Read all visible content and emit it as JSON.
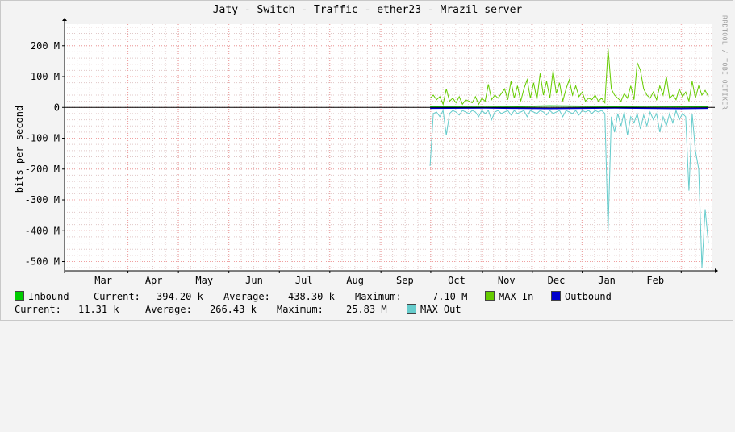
{
  "title": "Jaty - Switch - Traffic - ether23 - Mrazil server",
  "watermark": "RRDTOOL / TOBI OETIKER",
  "colors": {
    "inbound": "#00cc00",
    "max_in": "#66cc00",
    "outbound": "#0000cc",
    "max_out": "#66cccc",
    "grid_minor": "#e0c8c8",
    "grid_major": "#f0a0a0",
    "plot_bg": "#ffffff"
  },
  "legend": {
    "inbound": {
      "label": "Inbound",
      "current_label": "Current:",
      "current": "394.20 k",
      "average_label": "Average:",
      "average": "438.30 k",
      "maximum_label": "Maximum:",
      "maximum": "7.10 M"
    },
    "max_in": {
      "label": "MAX In"
    },
    "outbound": {
      "label": "Outbound",
      "current_label": "Current:",
      "current": "11.31 k",
      "average_label": "Average:",
      "average": "266.43 k",
      "maximum_label": "Maximum:",
      "maximum": "25.83 M"
    },
    "max_out": {
      "label": "MAX Out"
    }
  },
  "chart_data": {
    "type": "area",
    "title": "Jaty - Switch - Traffic - ether23 - Mrazil server",
    "ylabel": "bits per second",
    "ylim": [
      -530,
      270
    ],
    "y_unit": "M",
    "yticks": [
      {
        "value": 200,
        "label": "200 M"
      },
      {
        "value": 100,
        "label": "100 M"
      },
      {
        "value": 0,
        "label": "0"
      },
      {
        "value": -100,
        "label": "-100 M"
      },
      {
        "value": -200,
        "label": "-200 M"
      },
      {
        "value": -300,
        "label": "-300 M"
      },
      {
        "value": -400,
        "label": "-400 M"
      },
      {
        "value": -500,
        "label": "-500 M"
      }
    ],
    "xlim": [
      0,
      100
    ],
    "xticks": [
      {
        "pos": 6.0,
        "label": "Mar"
      },
      {
        "pos": 13.8,
        "label": "Apr"
      },
      {
        "pos": 21.6,
        "label": "May"
      },
      {
        "pos": 29.3,
        "label": "Jun"
      },
      {
        "pos": 37.0,
        "label": "Jul"
      },
      {
        "pos": 44.9,
        "label": "Aug"
      },
      {
        "pos": 52.6,
        "label": "Sep"
      },
      {
        "pos": 60.6,
        "label": "Oct"
      },
      {
        "pos": 68.3,
        "label": "Nov"
      },
      {
        "pos": 76.0,
        "label": "Dec"
      },
      {
        "pos": 83.8,
        "label": "Jan"
      },
      {
        "pos": 91.3,
        "label": "Feb"
      }
    ],
    "major_grid": [
      0,
      9.8,
      17.6,
      25.4,
      33.2,
      41.0,
      48.9,
      56.6,
      64.6,
      72.3,
      80.0,
      87.8,
      95.3
    ],
    "grid": true,
    "legend_position": "bottom",
    "series": [
      {
        "name": "MAX In",
        "x": [
          56.5,
          57.0,
          57.5,
          58.0,
          58.5,
          59.0,
          59.5,
          60.0,
          60.5,
          61.0,
          61.5,
          62.0,
          62.5,
          63.0,
          63.5,
          64.0,
          64.5,
          65.0,
          65.5,
          66.0,
          66.5,
          67.0,
          67.5,
          68.0,
          68.5,
          69.0,
          69.5,
          70.0,
          70.5,
          71.0,
          71.5,
          72.0,
          72.5,
          73.0,
          73.5,
          74.0,
          74.5,
          75.0,
          75.5,
          76.0,
          76.5,
          77.0,
          77.5,
          78.0,
          78.5,
          79.0,
          79.5,
          80.0,
          80.5,
          81.0,
          81.5,
          82.0,
          82.5,
          83.0,
          83.5,
          84.0,
          84.5,
          85.0,
          85.5,
          86.0,
          86.5,
          87.0,
          87.5,
          88.0,
          88.5,
          89.0,
          89.5,
          90.0,
          90.5,
          91.0,
          91.5,
          92.0,
          92.5,
          93.0,
          93.5,
          94.0,
          94.5,
          95.0,
          95.5,
          96.0,
          96.5,
          97.0,
          97.5,
          98.0,
          98.5,
          99.0,
          99.5
        ],
        "y": [
          30,
          40,
          25,
          35,
          10,
          60,
          20,
          30,
          15,
          35,
          10,
          25,
          20,
          15,
          35,
          10,
          30,
          20,
          75,
          25,
          40,
          30,
          45,
          60,
          25,
          85,
          30,
          70,
          20,
          60,
          90,
          30,
          80,
          25,
          110,
          40,
          85,
          30,
          120,
          45,
          80,
          20,
          60,
          90,
          40,
          70,
          35,
          50,
          20,
          30,
          25,
          40,
          20,
          30,
          15,
          190,
          60,
          40,
          30,
          20,
          45,
          30,
          70,
          25,
          145,
          120,
          60,
          40,
          30,
          50,
          25,
          70,
          40,
          100,
          30,
          40,
          25,
          60,
          35,
          50,
          20,
          85,
          30,
          70,
          40,
          55,
          35
        ]
      },
      {
        "name": "Inbound",
        "x": [
          56.5,
          65.0,
          70.0,
          75.0,
          80.0,
          85.0,
          90.0,
          95.0,
          99.5
        ],
        "y": [
          3,
          4,
          3,
          5,
          4,
          3,
          4,
          3,
          3
        ]
      },
      {
        "name": "Outbound",
        "x": [
          56.5,
          65.0,
          70.0,
          75.0,
          80.0,
          85.0,
          90.0,
          95.0,
          99.5
        ],
        "y": [
          -3,
          -2,
          -3,
          -4,
          -3,
          -2,
          -3,
          -4,
          -3
        ]
      },
      {
        "name": "MAX Out",
        "x": [
          56.5,
          57.0,
          57.5,
          58.0,
          58.5,
          59.0,
          59.5,
          60.0,
          60.5,
          61.0,
          61.5,
          62.0,
          62.5,
          63.0,
          63.5,
          64.0,
          64.5,
          65.0,
          65.5,
          66.0,
          66.5,
          67.0,
          67.5,
          68.0,
          68.5,
          69.0,
          69.5,
          70.0,
          70.5,
          71.0,
          71.5,
          72.0,
          72.5,
          73.0,
          73.5,
          74.0,
          74.5,
          75.0,
          75.5,
          76.0,
          76.5,
          77.0,
          77.5,
          78.0,
          78.5,
          79.0,
          79.5,
          80.0,
          80.5,
          81.0,
          81.5,
          82.0,
          82.5,
          83.0,
          83.5,
          84.0,
          84.5,
          85.0,
          85.5,
          86.0,
          86.5,
          87.0,
          87.5,
          88.0,
          88.5,
          89.0,
          89.5,
          90.0,
          90.5,
          91.0,
          91.5,
          92.0,
          92.5,
          93.0,
          93.5,
          94.0,
          94.5,
          95.0,
          95.5,
          96.0,
          96.5,
          97.0,
          97.5,
          98.0,
          98.5,
          99.0,
          99.5
        ],
        "y": [
          -190,
          -20,
          -15,
          -30,
          -10,
          -90,
          -20,
          -10,
          -15,
          -25,
          -10,
          -15,
          -20,
          -10,
          -15,
          -30,
          -10,
          -20,
          -10,
          -40,
          -15,
          -10,
          -20,
          -15,
          -10,
          -25,
          -10,
          -20,
          -15,
          -10,
          -30,
          -10,
          -15,
          -20,
          -10,
          -15,
          -25,
          -10,
          -20,
          -15,
          -10,
          -30,
          -10,
          -15,
          -20,
          -10,
          -25,
          -10,
          -15,
          -10,
          -20,
          -10,
          -15,
          -10,
          -20,
          -400,
          -30,
          -80,
          -20,
          -60,
          -15,
          -90,
          -30,
          -50,
          -20,
          -70,
          -25,
          -60,
          -15,
          -40,
          -20,
          -80,
          -30,
          -60,
          -20,
          -50,
          -10,
          -40,
          -20,
          -30,
          -270,
          -20,
          -140,
          -200,
          -520,
          -330,
          -440
        ]
      }
    ]
  }
}
